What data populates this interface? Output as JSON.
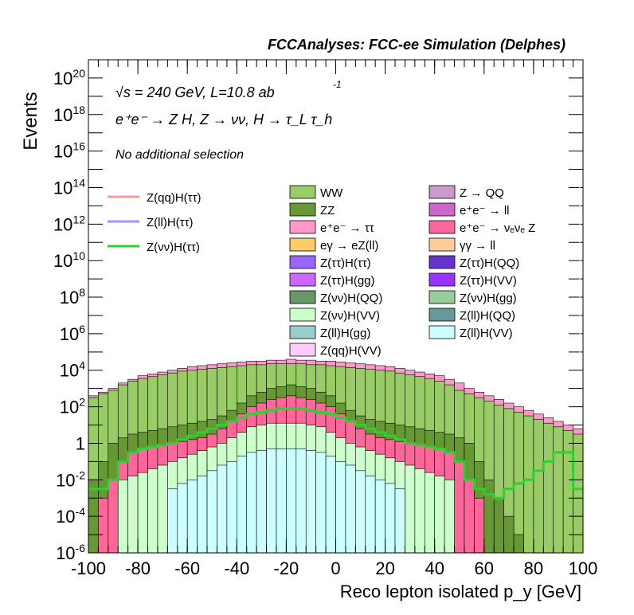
{
  "header": {
    "title": "FCCAnalyses: FCC-ee Simulation (Delphes)"
  },
  "annotations": {
    "energy_prefix": "√s = 240 GeV, L=10.8 ab",
    "energy_exp": "-1",
    "process": "e⁺e⁻ → Z H, Z → νν, H → τ_L τ_h",
    "selection": "No additional selection"
  },
  "chart_data": {
    "type": "histogram-stacked",
    "title": "FCCAnalyses: FCC-ee Simulation (Delphes)",
    "xlabel": "Reco lepton isolated p_y [GeV]",
    "ylabel": "Events",
    "xlim": [
      -100,
      100
    ],
    "ylim": [
      1e-06,
      1e+21
    ],
    "yscale": "log",
    "x_ticks": [
      -100,
      -80,
      -60,
      -40,
      -20,
      0,
      20,
      40,
      60,
      80,
      100
    ],
    "y_tick_labels": [
      "10^-6",
      "10^-4",
      "10^-2",
      "1",
      "10^2",
      "10^4",
      "10^6",
      "10^8",
      "10^10",
      "10^12",
      "10^14",
      "10^16",
      "10^18",
      "10^20"
    ],
    "grid": false,
    "legend_placement": "center",
    "signal_lines": [
      {
        "name": "Z(qq)H(ττ)",
        "color": "#ff9999"
      },
      {
        "name": "Z(ll)H(ττ)",
        "color": "#9999ff"
      },
      {
        "name": "Z(νν)H(ττ)",
        "color": "#33cc33"
      }
    ],
    "backgrounds": [
      {
        "name": "WW",
        "color": "#99cc66"
      },
      {
        "name": "Z → QQ",
        "color": "#cc99cc"
      },
      {
        "name": "ZZ",
        "color": "#669933"
      },
      {
        "name": "e⁺e⁻ → ll",
        "color": "#cc66cc"
      },
      {
        "name": "e⁺e⁻ → ττ",
        "color": "#ff99cc"
      },
      {
        "name": "e⁺e⁻ → νₑνₑ Z",
        "color": "#ff6699"
      },
      {
        "name": "eγ → eZ(ll)",
        "color": "#ffcc66"
      },
      {
        "name": "γγ → ll",
        "color": "#ffcc99"
      },
      {
        "name": "Z(ττ)H(ττ)",
        "color": "#9966ff"
      },
      {
        "name": "Z(ττ)H(QQ)",
        "color": "#6633cc"
      },
      {
        "name": "Z(ττ)H(gg)",
        "color": "#cc66ff"
      },
      {
        "name": "Z(ττ)H(VV)",
        "color": "#9933ff"
      },
      {
        "name": "Z(νν)H(QQ)",
        "color": "#669966"
      },
      {
        "name": "Z(νν)H(gg)",
        "color": "#99cc99"
      },
      {
        "name": "Z(νν)H(VV)",
        "color": "#ccffcc"
      },
      {
        "name": "Z(ll)H(QQ)",
        "color": "#669999"
      },
      {
        "name": "Z(ll)H(gg)",
        "color": "#99cccc"
      },
      {
        "name": "Z(ll)H(VV)",
        "color": "#ccffff"
      },
      {
        "name": "Z(qq)H(VV)",
        "color": "#ffccff"
      }
    ],
    "bins": {
      "x_edges_start": -100,
      "bin_width": 4,
      "total_stack_log10": [
        2.6,
        2.8,
        3.0,
        3.3,
        3.5,
        3.7,
        3.8,
        3.9,
        4.0,
        4.1,
        4.2,
        4.25,
        4.3,
        4.35,
        4.4,
        4.45,
        4.5,
        4.5,
        4.55,
        4.55,
        4.6,
        4.55,
        4.55,
        4.5,
        4.5,
        4.45,
        4.4,
        4.35,
        4.3,
        4.25,
        4.2,
        4.1,
        4.0,
        3.9,
        3.8,
        3.7,
        3.5,
        3.3,
        3.0,
        2.8,
        2.6,
        2.4,
        2.2,
        2.0,
        1.8,
        1.6,
        1.4,
        1.2,
        1.0,
        0.8
      ],
      "ww_top_log10": [
        2.5,
        2.7,
        2.9,
        3.2,
        3.4,
        3.55,
        3.65,
        3.75,
        3.85,
        3.95,
        4.0,
        4.05,
        4.1,
        4.15,
        4.2,
        4.25,
        4.3,
        4.3,
        4.35,
        4.35,
        4.35,
        4.35,
        4.3,
        4.3,
        4.25,
        4.2,
        4.15,
        4.1,
        4.05,
        4.0,
        3.95,
        3.85,
        3.75,
        3.65,
        3.55,
        3.4,
        3.2,
        2.9,
        2.7,
        2.5,
        2.3,
        2.1,
        1.9,
        1.7,
        1.5,
        1.3,
        1.1,
        0.9,
        0.7,
        0.5
      ],
      "zz_top_log10": [
        -2.0,
        -1.0,
        0.0,
        0.3,
        0.5,
        0.6,
        0.7,
        0.8,
        0.9,
        1.0,
        1.1,
        1.2,
        1.3,
        1.5,
        1.8,
        2.2,
        2.6,
        2.8,
        3.0,
        3.1,
        3.2,
        3.1,
        3.0,
        2.8,
        2.6,
        2.2,
        1.8,
        1.5,
        1.3,
        1.2,
        1.1,
        1.0,
        0.9,
        0.8,
        0.7,
        0.6,
        0.5,
        0.3,
        0.0,
        -1.0,
        -2.0,
        -3.0,
        -4.0,
        -5.0,
        -6.0,
        -6.0,
        -6.0,
        -6.0,
        -6.0,
        -6.0
      ],
      "nunuZ_top_log10": [
        -6.0,
        -3.0,
        -2.0,
        -1.0,
        -0.5,
        -0.3,
        -0.2,
        -0.1,
        0.0,
        0.1,
        0.2,
        0.3,
        0.5,
        0.8,
        1.2,
        1.6,
        2.0,
        2.2,
        2.4,
        2.5,
        2.6,
        2.5,
        2.4,
        2.2,
        2.0,
        1.6,
        1.2,
        0.8,
        0.5,
        0.3,
        0.2,
        0.1,
        0.0,
        -0.1,
        -0.2,
        -0.3,
        -0.5,
        -1.0,
        -2.0,
        -3.0,
        -6.0,
        -6.0,
        -6.0,
        -6.0,
        -6.0,
        -6.0,
        -6.0,
        -6.0,
        -6.0,
        -6.0
      ],
      "vvhvv_top_log10": [
        -6.0,
        -6.0,
        -6.0,
        -2.0,
        -1.8,
        -1.6,
        -1.4,
        -1.2,
        -1.0,
        -0.8,
        -0.6,
        -0.4,
        -0.2,
        0.0,
        0.3,
        0.6,
        0.9,
        1.0,
        1.1,
        1.1,
        1.1,
        1.1,
        1.0,
        0.9,
        0.6,
        0.3,
        0.0,
        -0.2,
        -0.4,
        -0.6,
        -0.8,
        -1.0,
        -1.2,
        -1.4,
        -1.6,
        -1.8,
        -2.0,
        -6.0,
        -6.0,
        -6.0,
        -6.0,
        -6.0,
        -6.0,
        -6.0,
        -6.0,
        -6.0,
        -6.0,
        -6.0,
        -6.0,
        -6.0
      ],
      "llhvv_top_log10": [
        -6.0,
        -6.0,
        -6.0,
        -6.0,
        -6.0,
        -6.0,
        -6.0,
        -6.0,
        -2.5,
        -2.2,
        -2.0,
        -1.8,
        -1.5,
        -1.2,
        -1.0,
        -0.7,
        -0.5,
        -0.4,
        -0.3,
        -0.3,
        -0.3,
        -0.3,
        -0.4,
        -0.5,
        -0.7,
        -1.0,
        -1.2,
        -1.5,
        -1.8,
        -2.0,
        -2.2,
        -2.5,
        -6.0,
        -6.0,
        -6.0,
        -6.0,
        -6.0,
        -6.0,
        -6.0,
        -6.0,
        -6.0,
        -6.0,
        -6.0,
        -6.0,
        -6.0,
        -6.0,
        -6.0,
        -6.0,
        -6.0,
        -6.0
      ],
      "vvhtt_line_log10": [
        -2.5,
        -2.5,
        -2.0,
        -1.0,
        -0.5,
        -0.3,
        -0.2,
        -0.1,
        0.0,
        0.2,
        0.4,
        0.6,
        0.8,
        1.0,
        1.2,
        1.4,
        1.6,
        1.7,
        1.8,
        1.9,
        1.9,
        1.9,
        1.8,
        1.7,
        1.6,
        1.4,
        1.2,
        1.0,
        0.8,
        0.6,
        0.4,
        0.2,
        0.0,
        -0.1,
        -0.2,
        -0.3,
        -0.5,
        -1.0,
        -2.0,
        -2.5,
        -2.8,
        -3.0,
        -2.5,
        -2.2,
        -2.0,
        -1.5,
        -1.0,
        -0.5,
        -0.5,
        -2.5
      ]
    }
  }
}
